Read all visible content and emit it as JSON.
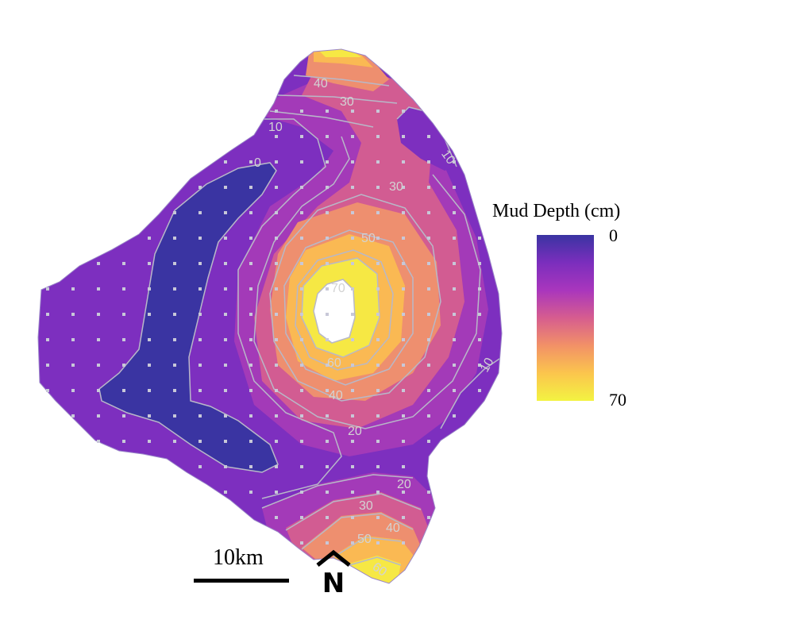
{
  "legend": {
    "title": "Mud Depth (cm)",
    "min_label": "0",
    "max_label": "70",
    "colors": [
      "#3a34a2",
      "#7b2ebd",
      "#a936bd",
      "#d65d8f",
      "#f29167",
      "#fbc54d",
      "#f3f342"
    ]
  },
  "scale_bar": {
    "label": "10km"
  },
  "north_arrow": {
    "label": "N"
  },
  "contour_labels": {
    "l0": "0",
    "l10a": "10",
    "l10b": "10",
    "l10c": "10",
    "l20a": "20",
    "l20b": "20",
    "l30a": "30",
    "l30b": "30",
    "l30c": "30",
    "l40a": "40",
    "l40b": "40",
    "l40c": "40",
    "l50a": "50",
    "l50b": "50",
    "l60a": "60",
    "l60b": "60",
    "l70": "70"
  },
  "colors": {
    "level_0": "#3a34a2",
    "level_10": "#7d2fbf",
    "level_20": "#a33ab8",
    "level_30": "#d25c92",
    "level_40": "#ee8f6f",
    "level_50": "#fab953",
    "level_60": "#f6e844",
    "level_70": "#ffffff",
    "contour_line": "#b8b8c8"
  }
}
